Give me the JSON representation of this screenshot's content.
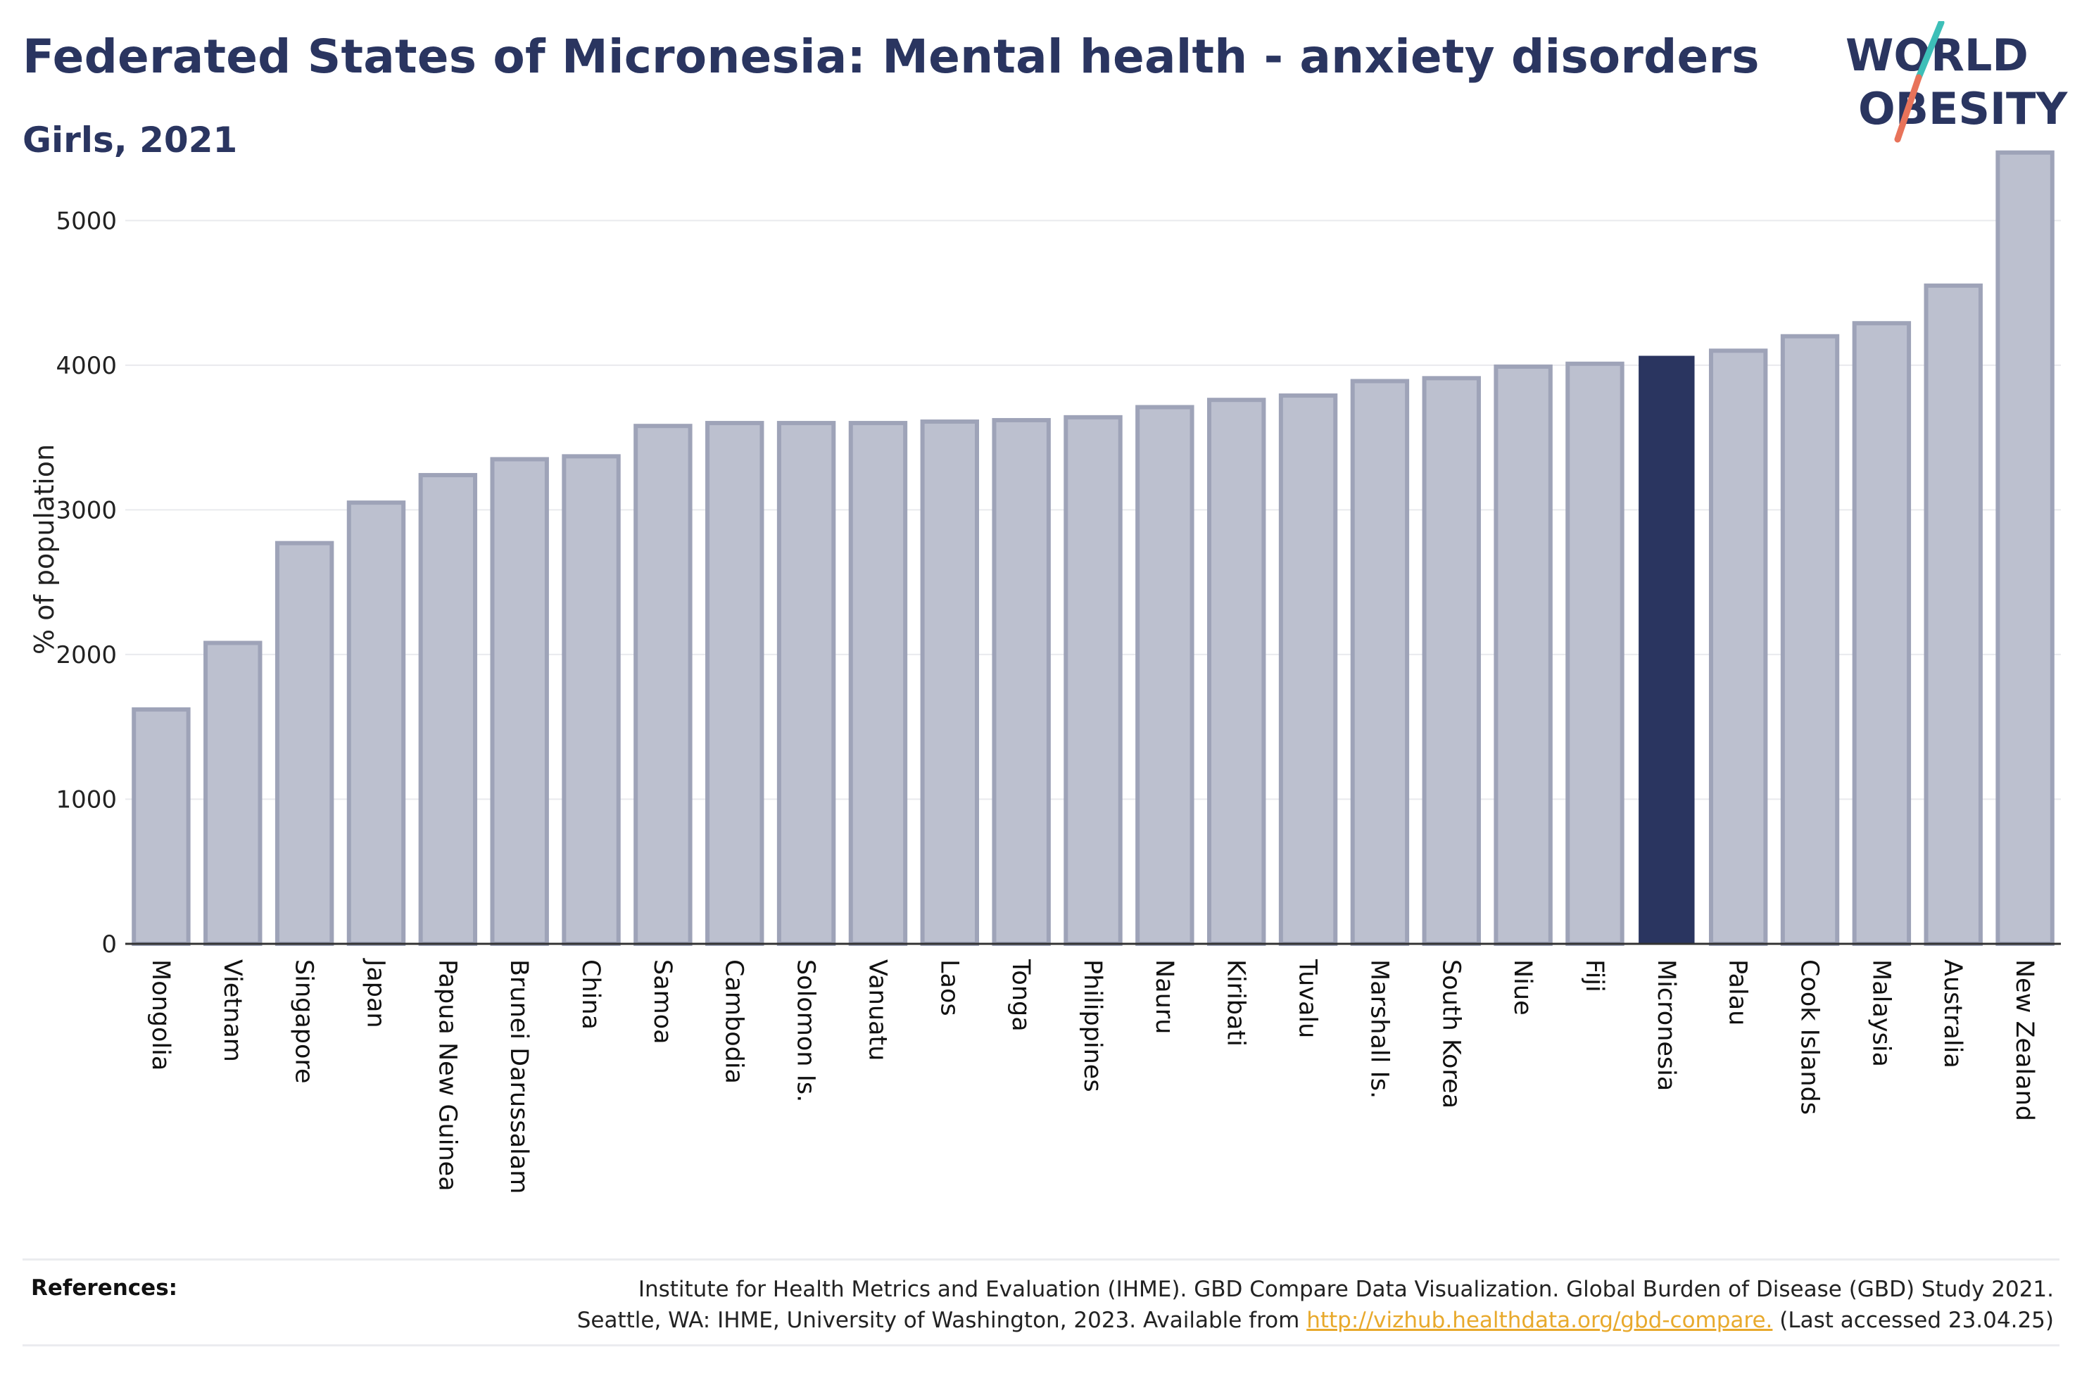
{
  "header": {
    "title": "Federated States of Micronesia: Mental health - anxiety disorders",
    "subtitle": "Girls, 2021"
  },
  "logo": {
    "line1": "WORLD",
    "line2": "OBESITY"
  },
  "colors": {
    "bar_default": "#bcc0cf",
    "bar_default_stroke": "#9ea3b8",
    "bar_highlight": "#2a3560",
    "text_dark": "#2a3560",
    "logo_teal": "#3dbfb8",
    "logo_coral": "#e8735a",
    "link": "#e8a92c"
  },
  "chart_data": {
    "type": "bar",
    "ylabel": "% of population",
    "ylim": [
      0,
      5600
    ],
    "yticks": [
      0,
      1000,
      2000,
      3000,
      4000,
      5000
    ],
    "grid": true,
    "highlight": "Micronesia",
    "categories": [
      "Mongolia",
      "Vietnam",
      "Singapore",
      "Japan",
      "Papua New Guinea",
      "Brunei Darussalam",
      "China",
      "Samoa",
      "Cambodia",
      "Solomon Is.",
      "Vanuatu",
      "Laos",
      "Tonga",
      "Philippines",
      "Nauru",
      "Kiribati",
      "Tuvalu",
      "Marshall Is.",
      "South Korea",
      "Niue",
      "Fiji",
      "Micronesia",
      "Palau",
      "Cook Islands",
      "Malaysia",
      "Australia",
      "New Zealand"
    ],
    "values": [
      1620,
      2080,
      2770,
      3050,
      3240,
      3350,
      3370,
      3580,
      3600,
      3600,
      3600,
      3610,
      3620,
      3640,
      3710,
      3760,
      3790,
      3890,
      3910,
      3990,
      4010,
      4060,
      4100,
      4200,
      4290,
      4550,
      5470
    ]
  },
  "references": {
    "label": "References:",
    "line1": "Institute for Health Metrics and Evaluation (IHME). GBD Compare Data Visualization. Global Burden of Disease (GBD) Study 2021.",
    "line2_prefix": "Seattle, WA: IHME, University of Washington, 2023. Available from ",
    "link": "http://vizhub.healthdata.org/gbd-compare.",
    "line2_suffix": " (Last accessed 23.04.25)"
  }
}
